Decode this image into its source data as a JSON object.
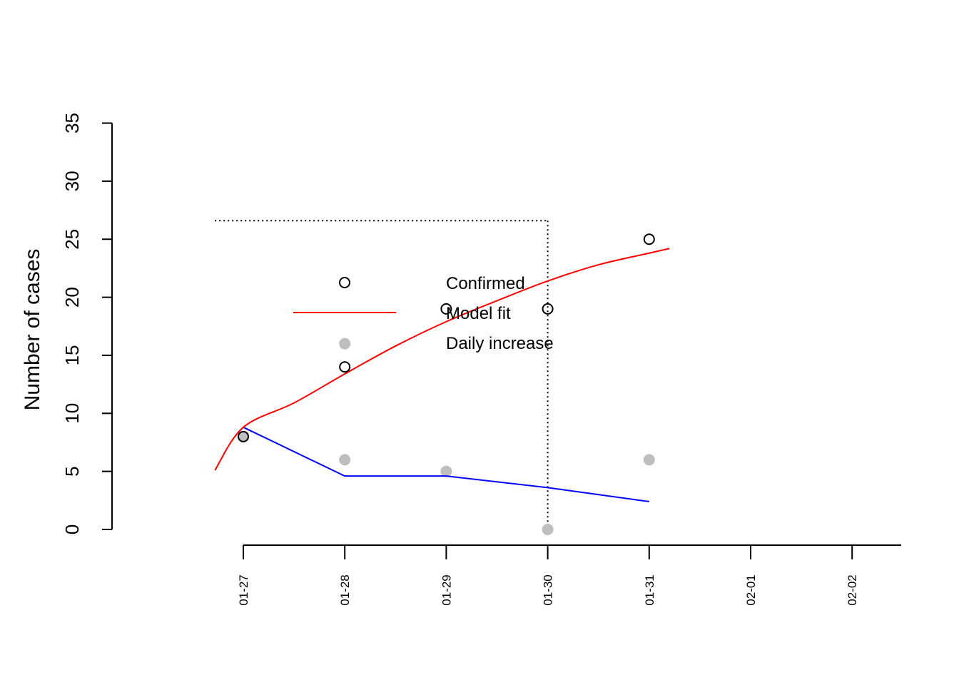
{
  "chart_data": {
    "type": "line",
    "title": "",
    "xlabel": "",
    "ylabel": "Number of cases",
    "x_ticks": [
      "01-27",
      "01-28",
      "01-29",
      "01-30",
      "01-31",
      "02-01",
      "02-02"
    ],
    "ylim": [
      0,
      35
    ],
    "y_ticks": [
      0,
      5,
      10,
      15,
      20,
      25,
      30,
      35
    ],
    "grid": false,
    "legend_position": "center",
    "series": [
      {
        "name": "Confirmed",
        "kind": "points-open",
        "color": "#000000",
        "points": [
          {
            "x": "01-27",
            "y": 8
          },
          {
            "x": "01-28",
            "y": 14
          },
          {
            "x": "01-29",
            "y": 19
          },
          {
            "x": "01-30",
            "y": 19
          },
          {
            "x": "01-31",
            "y": 25
          }
        ]
      },
      {
        "name": "Model fit",
        "kind": "curve",
        "color": "#ff0000",
        "points": [
          {
            "x": "01-26.72",
            "y": 5.1
          },
          {
            "x": "01-27",
            "y": 8.8
          },
          {
            "x": "01-27.5",
            "y": 10.9
          },
          {
            "x": "01-28",
            "y": 13.4
          },
          {
            "x": "01-28.5",
            "y": 15.8
          },
          {
            "x": "01-29",
            "y": 17.9
          },
          {
            "x": "01-29.5",
            "y": 19.7
          },
          {
            "x": "01-30",
            "y": 21.4
          },
          {
            "x": "01-30.5",
            "y": 22.8
          },
          {
            "x": "01-31",
            "y": 23.8
          },
          {
            "x": "01-31.2",
            "y": 24.2
          }
        ]
      },
      {
        "name": "Daily increase",
        "kind": "points-filled",
        "color": "#bebebe",
        "points": [
          {
            "x": "01-27",
            "y": 8
          },
          {
            "x": "01-28",
            "y": 16
          },
          {
            "x": "01-28",
            "y": 6
          },
          {
            "x": "01-29",
            "y": 5
          },
          {
            "x": "01-30",
            "y": 0
          },
          {
            "x": "01-31",
            "y": 6
          }
        ]
      },
      {
        "kind": "line",
        "color": "#0000ff",
        "points": [
          {
            "x": "01-27",
            "y": 8.8
          },
          {
            "x": "01-28",
            "y": 4.6
          },
          {
            "x": "01-29",
            "y": 4.6
          },
          {
            "x": "01-30",
            "y": 3.6
          },
          {
            "x": "01-31",
            "y": 2.4
          }
        ]
      }
    ],
    "reference_lines": {
      "style": "dotted",
      "color": "#000000",
      "horizontal_y": 26.6,
      "vertical_x": "01-30"
    }
  }
}
